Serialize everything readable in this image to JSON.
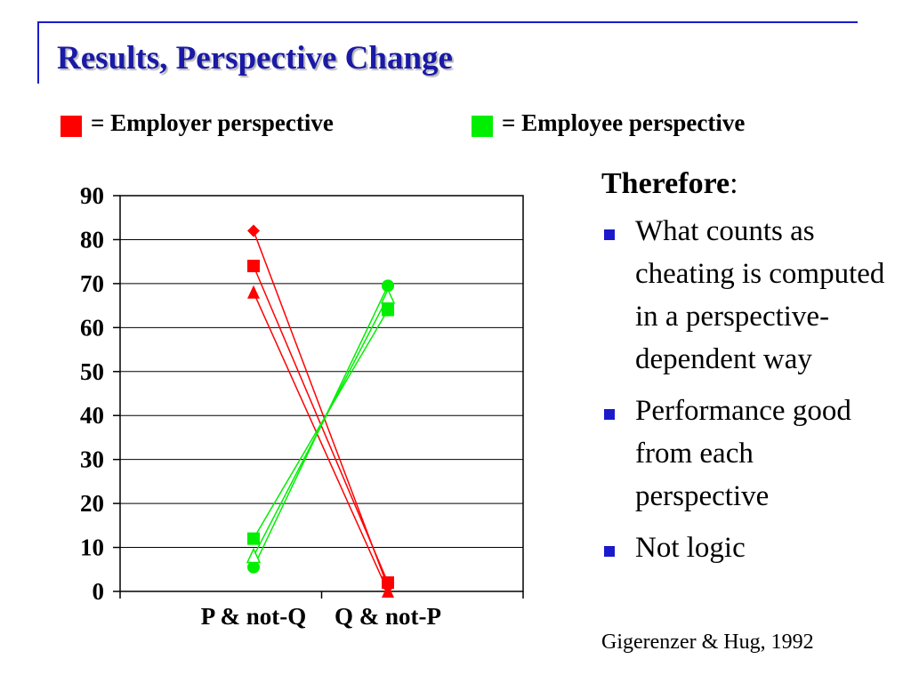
{
  "slide": {
    "title": "Results, Perspective Change",
    "legend": [
      {
        "label": "= Employer perspective",
        "color": "#ff0000"
      },
      {
        "label": "= Employee perspective",
        "color": "#00ee00"
      }
    ],
    "side_heading": "Therefore",
    "side_heading_colon": ":",
    "bullets": [
      "What counts as cheating is computed in a perspective-dependent way",
      "Performance good from each perspective",
      "Not logic"
    ],
    "citation": "Gigerenzer & Hug, 1992"
  },
  "chart_data": {
    "type": "line",
    "categories": [
      "P & not-Q",
      "Q & not-P"
    ],
    "ylim": [
      0,
      90
    ],
    "yticks": [
      0,
      10,
      20,
      30,
      40,
      50,
      60,
      70,
      80,
      90
    ],
    "grid": true,
    "series": [
      {
        "group": "Employer perspective",
        "color": "#ff0000",
        "marker": "diamond",
        "values": [
          82,
          1
        ]
      },
      {
        "group": "Employer perspective",
        "color": "#ff0000",
        "marker": "square",
        "values": [
          74,
          2
        ]
      },
      {
        "group": "Employer perspective",
        "color": "#ff0000",
        "marker": "triangle",
        "values": [
          68,
          0
        ]
      },
      {
        "group": "Employee perspective",
        "color": "#00ee00",
        "marker": "circle",
        "values": [
          5.5,
          69.5
        ]
      },
      {
        "group": "Employee perspective",
        "color": "#00ee00",
        "marker": "square",
        "values": [
          12,
          64
        ]
      },
      {
        "group": "Employee perspective",
        "color": "#00ee00",
        "marker": "triangle-open",
        "values": [
          8,
          67
        ]
      }
    ]
  }
}
